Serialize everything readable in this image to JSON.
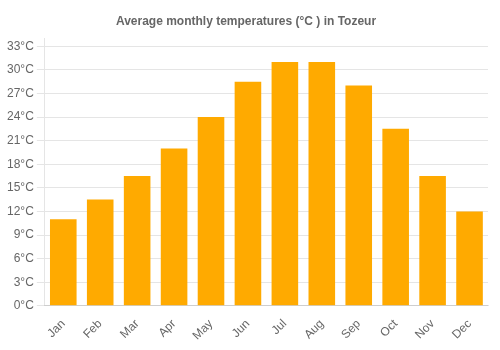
{
  "chart_data": {
    "type": "bar",
    "title": "Average monthly temperatures (°C ) in Tozeur",
    "categories": [
      "Jan",
      "Feb",
      "Mar",
      "Apr",
      "May",
      "Jun",
      "Jul",
      "Aug",
      "Sep",
      "Oct",
      "Nov",
      "Dec"
    ],
    "values": [
      11,
      13.5,
      16.5,
      20,
      24,
      28.5,
      31,
      31,
      28,
      22.5,
      16.5,
      12
    ],
    "color": "#FFAA00",
    "ylim": [
      0,
      34
    ],
    "yticks": [
      {
        "value": 0,
        "label": "0°C"
      },
      {
        "value": 3,
        "label": "3°C"
      },
      {
        "value": 6,
        "label": "6°C"
      },
      {
        "value": 9,
        "label": "9°C"
      },
      {
        "value": 12,
        "label": "12°C"
      },
      {
        "value": 15,
        "label": "15°C"
      },
      {
        "value": 18,
        "label": "18°C"
      },
      {
        "value": 21,
        "label": "21°C"
      },
      {
        "value": 24,
        "label": "24°C"
      },
      {
        "value": 27,
        "label": "27°C"
      },
      {
        "value": 30,
        "label": "30°C"
      },
      {
        "value": 33,
        "label": "33°C"
      }
    ],
    "grid": true
  }
}
